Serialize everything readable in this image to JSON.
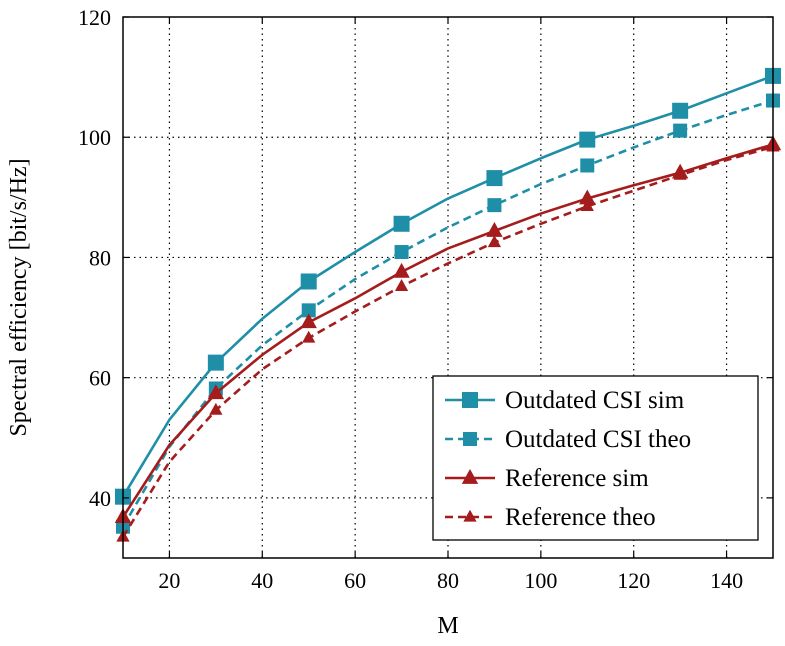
{
  "chart_data": {
    "type": "line",
    "title": "",
    "xlabel": "M",
    "ylabel": "Spectral efficiency [bit/s/Hz]",
    "xlim": [
      10,
      150
    ],
    "ylim": [
      30,
      120
    ],
    "xticks": [
      20,
      40,
      60,
      80,
      100,
      120,
      140
    ],
    "yticks": [
      40,
      60,
      80,
      100,
      120
    ],
    "grid": true,
    "legend_position": "bottom-right",
    "series": [
      {
        "name": "Outdated CSI sim",
        "color": "#1f8fa8",
        "linestyle": "solid",
        "marker": "square",
        "x": [
          10,
          20,
          30,
          40,
          50,
          60,
          70,
          80,
          90,
          100,
          110,
          120,
          130,
          140,
          150
        ],
        "y": [
          40.2,
          53,
          62.5,
          69.8,
          76.0,
          80.9,
          85.6,
          89.8,
          93.2,
          96.5,
          99.6,
          101.9,
          104.4,
          107.3,
          110.2
        ],
        "markers_at": [
          10,
          30,
          50,
          70,
          90,
          110,
          130,
          150
        ]
      },
      {
        "name": "Outdated CSI theo",
        "color": "#1f8fa8",
        "linestyle": "dashed",
        "marker": "square",
        "x": [
          10,
          20,
          30,
          40,
          50,
          60,
          70,
          80,
          90,
          100,
          110,
          120,
          130,
          140,
          150
        ],
        "y": [
          35.2,
          48.5,
          58.2,
          65.4,
          71.2,
          76.4,
          80.9,
          85.0,
          88.7,
          92.2,
          95.3,
          98.3,
          101.1,
          103.7,
          106.1
        ],
        "markers_at": [
          10,
          30,
          50,
          70,
          90,
          110,
          130,
          150
        ]
      },
      {
        "name": "Reference sim",
        "color": "#a51c1c",
        "linestyle": "solid",
        "marker": "triangle",
        "x": [
          10,
          20,
          30,
          40,
          50,
          60,
          70,
          80,
          90,
          100,
          110,
          120,
          130,
          140,
          150
        ],
        "y": [
          36.8,
          48.8,
          57.4,
          63.8,
          69.2,
          73.2,
          77.6,
          81.5,
          84.4,
          87.3,
          89.8,
          92.0,
          94.1,
          96.5,
          98.8
        ],
        "markers_at": [
          10,
          30,
          50,
          70,
          90,
          110,
          130,
          150
        ]
      },
      {
        "name": "Reference theo",
        "color": "#a51c1c",
        "linestyle": "dashed",
        "marker": "triangle",
        "x": [
          10,
          20,
          30,
          40,
          50,
          60,
          70,
          80,
          90,
          100,
          110,
          120,
          130,
          140,
          150
        ],
        "y": [
          33.5,
          46.0,
          54.6,
          61.4,
          66.6,
          71.0,
          75.2,
          79.0,
          82.5,
          85.6,
          88.5,
          91.1,
          93.7,
          96.2,
          98.4
        ],
        "markers_at": [
          10,
          30,
          50,
          70,
          90,
          110,
          130,
          150
        ]
      }
    ]
  }
}
